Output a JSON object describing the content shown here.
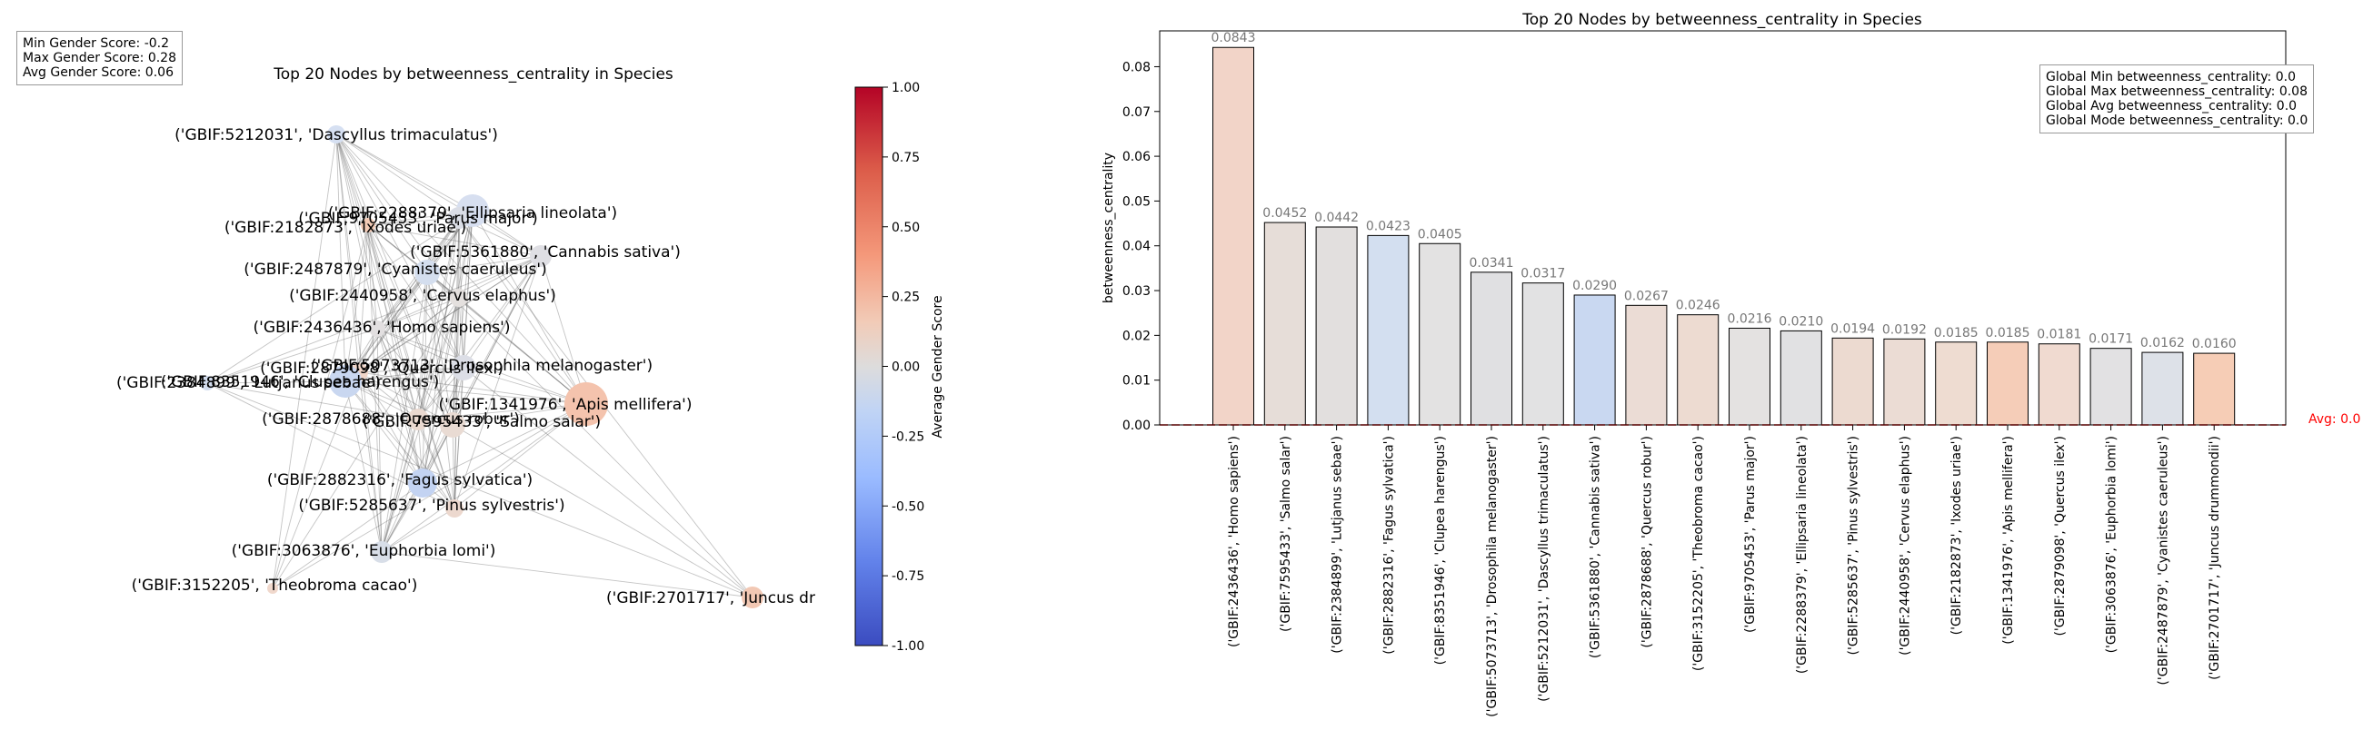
{
  "network": {
    "title": "Top 20 Nodes by betweenness_centrality in Species",
    "stats": [
      "Min Gender Score: -0.2",
      "Max Gender Score: 0.28",
      "Avg Gender Score: 0.06"
    ],
    "colorbar": {
      "label": "Average Gender Score",
      "min": -1.0,
      "max": 1.0,
      "ticks": [
        "1.00",
        "0.75",
        "0.50",
        "0.25",
        "0.00",
        "-0.25",
        "-0.50",
        "-0.75",
        "-1.00"
      ]
    },
    "node_labels": [
      "('GBIF:5212031', 'Dascyllus trimaculatus')",
      "('GBIF:2288379', 'Ellipsaria lineolata')",
      "('GBIF:9705453', 'Parus major')",
      "('GBIF:2182873', 'Ixodes uriae')",
      "('GBIF:5361880', 'Cannabis sativa')",
      "('GBIF:2487879', 'Cyanistes caeruleus')",
      "('GBIF:2440958', 'Cervus elaphus')",
      "('GBIF:2436436', 'Homo sapiens')",
      "('GBIF:5073713', 'Drosophila melanogaster')",
      "('GBIF:2879098', 'Quercus ilex')",
      "('GBIF:8351946', 'Clupea harengus')",
      "('GBIF:2384899', 'Lutjanus sebae')",
      "('GBIF:1341976', 'Apis mellifera')",
      "('GBIF:2878688', 'Quercus robur')",
      "('GBIF:7595433', 'Salmo salar')",
      "('GBIF:2882316', 'Fagus sylvatica')",
      "('GBIF:5285637', 'Pinus sylvestris')",
      "('GBIF:3063876', 'Euphorbia lomi')",
      "('GBIF:3152205', 'Theobroma cacao')",
      "('GBIF:2701717', 'Juncus dr"
    ]
  },
  "chart_data": {
    "type": "bar",
    "title": "Top 20 Nodes by betweenness_centrality in Species",
    "ylabel": "betweenness_centrality",
    "xlabel": "",
    "ylim": [
      0,
      0.088
    ],
    "yticks": [
      "0.00",
      "0.01",
      "0.02",
      "0.03",
      "0.04",
      "0.05",
      "0.06",
      "0.07",
      "0.08"
    ],
    "categories": [
      "('GBIF:2436436', 'Homo sapiens')",
      "('GBIF:7595433', 'Salmo salar')",
      "('GBIF:2384899', 'Lutjanus sebae')",
      "('GBIF:2882316', 'Fagus sylvatica')",
      "('GBIF:8351946', 'Clupea harengus')",
      "('GBIF:5073713', 'Drosophila melanogaster')",
      "('GBIF:5212031', 'Dascyllus trimaculatus')",
      "('GBIF:5361880', 'Cannabis sativa')",
      "('GBIF:2878688', 'Quercus robur')",
      "('GBIF:3152205', 'Theobroma cacao')",
      "('GBIF:9705453', 'Parus major')",
      "('GBIF:2288379', 'Ellipsaria lineolata')",
      "('GBIF:5285637', 'Pinus sylvestris')",
      "('GBIF:2440958', 'Cervus elaphus')",
      "('GBIF:2182873', 'Ixodes uriae')",
      "('GBIF:1341976', 'Apis mellifera')",
      "('GBIF:2879098', 'Quercus ilex')",
      "('GBIF:3063876', 'Euphorbia lomi')",
      "('GBIF:2487879', 'Cyanistes caeruleus')",
      "('GBIF:2701717', 'Juncus drummondii')"
    ],
    "values": [
      0.0843,
      0.0452,
      0.0442,
      0.0423,
      0.0405,
      0.0341,
      0.0317,
      0.029,
      0.0267,
      0.0246,
      0.0216,
      0.021,
      0.0194,
      0.0192,
      0.0185,
      0.0185,
      0.0181,
      0.0171,
      0.0162,
      0.016
    ],
    "value_labels": [
      "0.0843",
      "0.0452",
      "0.0442",
      "0.0423",
      "0.0405",
      "0.0341",
      "0.0317",
      "0.0290",
      "0.0267",
      "0.0246",
      "0.0216",
      "0.0210",
      "0.0194",
      "0.0192",
      "0.0185",
      "0.0185",
      "0.0181",
      "0.0171",
      "0.0162",
      "0.0160"
    ],
    "bar_colors": [
      "#f2d4c8",
      "#e6ddd8",
      "#e2dfde",
      "#d3dff0",
      "#e3e2e2",
      "#e0e0e2",
      "#e2e2e3",
      "#c9d8f1",
      "#ebdcd5",
      "#eddbd1",
      "#e4e2e1",
      "#e1e1e3",
      "#ecdad0",
      "#ebdcd4",
      "#eedcd1",
      "#f5cdb8",
      "#f0dad0",
      "#e2e1e3",
      "#dde1e8",
      "#f6cdb6"
    ],
    "avg_line": {
      "value": 0.0,
      "label": "Avg: 0.0",
      "color": "#ff0000"
    },
    "stats": [
      "Global Min betweenness_centrality: 0.0",
      "Global Max betweenness_centrality: 0.08",
      "Global Avg betweenness_centrality: 0.0",
      "Global Mode betweenness_centrality: 0.0"
    ]
  }
}
